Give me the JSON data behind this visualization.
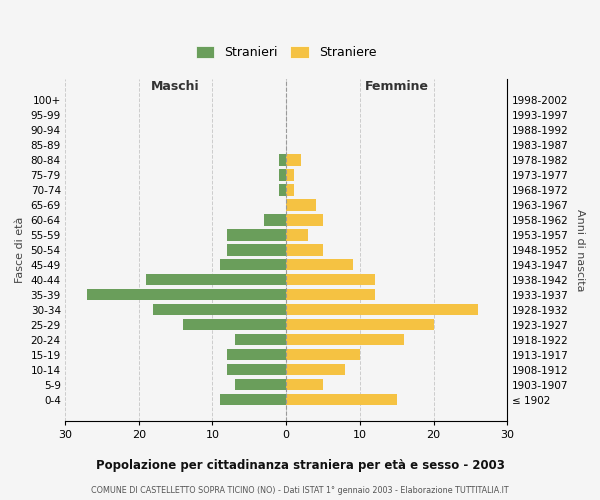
{
  "age_groups": [
    "100+",
    "95-99",
    "90-94",
    "85-89",
    "80-84",
    "75-79",
    "70-74",
    "65-69",
    "60-64",
    "55-59",
    "50-54",
    "45-49",
    "40-44",
    "35-39",
    "30-34",
    "25-29",
    "20-24",
    "15-19",
    "10-14",
    "5-9",
    "0-4"
  ],
  "birth_years": [
    "≤ 1902",
    "1903-1907",
    "1908-1912",
    "1913-1917",
    "1918-1922",
    "1923-1927",
    "1928-1932",
    "1933-1937",
    "1938-1942",
    "1943-1947",
    "1948-1952",
    "1953-1957",
    "1958-1962",
    "1963-1967",
    "1968-1972",
    "1973-1977",
    "1978-1982",
    "1983-1987",
    "1988-1992",
    "1993-1997",
    "1998-2002"
  ],
  "maschi": [
    0,
    0,
    0,
    0,
    1,
    1,
    1,
    0,
    3,
    8,
    8,
    9,
    19,
    27,
    18,
    14,
    7,
    8,
    8,
    7,
    9
  ],
  "femmine": [
    0,
    0,
    0,
    0,
    2,
    1,
    1,
    4,
    5,
    3,
    5,
    9,
    12,
    12,
    26,
    20,
    16,
    10,
    8,
    5,
    15
  ],
  "maschi_color": "#6a9e5b",
  "femmine_color": "#f5c242",
  "title": "Popolazione per cittadinanza straniera per età e sesso - 2003",
  "subtitle": "COMUNE DI CASTELLETTO SOPRA TICINO (NO) - Dati ISTAT 1° gennaio 2003 - Elaborazione TUTTITALIA.IT",
  "xlabel_left": "Maschi",
  "xlabel_right": "Femmine",
  "ylabel_left": "Fasce di età",
  "ylabel_right": "Anni di nascita",
  "xlim": 30,
  "legend_stranieri": "Stranieri",
  "legend_straniere": "Straniere",
  "background_color": "#f5f5f5",
  "grid_color": "#cccccc",
  "bar_height": 0.75
}
